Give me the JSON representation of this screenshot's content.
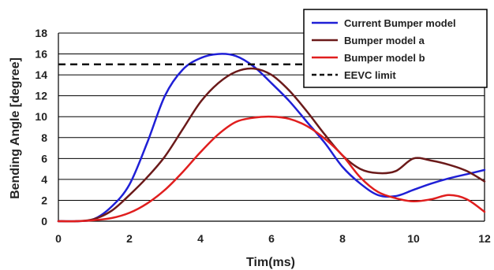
{
  "chart_data": {
    "type": "line",
    "title": "",
    "xlabel": "Tim(ms)",
    "ylabel": "Bending Angle [degree]",
    "xlim": [
      0,
      12
    ],
    "ylim": [
      0,
      18
    ],
    "x_ticks": [
      0,
      2,
      4,
      6,
      8,
      10,
      12
    ],
    "y_ticks": [
      0,
      2,
      4,
      6,
      8,
      10,
      12,
      14,
      16,
      18
    ],
    "grid": "horizontal",
    "legend_position": "top-right",
    "series": [
      {
        "name": "Current Bumper model",
        "color": "#1f1fd6",
        "style": "solid",
        "x": [
          0,
          0.5,
          1.0,
          1.5,
          2.0,
          2.5,
          3.0,
          3.5,
          4.0,
          4.5,
          5.0,
          5.5,
          6.0,
          6.5,
          7.0,
          7.5,
          8.0,
          8.5,
          9.0,
          9.5,
          10.0,
          10.5,
          11.0,
          11.5,
          12.0
        ],
        "values": [
          0,
          0,
          0.2,
          1.4,
          3.5,
          7.5,
          12.0,
          14.5,
          15.6,
          16.0,
          15.8,
          14.8,
          13.2,
          11.5,
          9.5,
          7.5,
          5.2,
          3.6,
          2.5,
          2.4,
          3.0,
          3.6,
          4.1,
          4.5,
          4.9
        ]
      },
      {
        "name": "Bumper model a",
        "color": "#6b1a1a",
        "style": "solid",
        "x": [
          0,
          0.5,
          1.0,
          1.5,
          2.0,
          2.5,
          3.0,
          3.5,
          4.0,
          4.5,
          5.0,
          5.5,
          6.0,
          6.5,
          7.0,
          7.5,
          8.0,
          8.5,
          9.0,
          9.5,
          10.0,
          10.5,
          11.0,
          11.5,
          12.0
        ],
        "values": [
          0,
          0,
          0.2,
          1.0,
          2.5,
          4.2,
          6.2,
          8.8,
          11.4,
          13.2,
          14.3,
          14.6,
          14.0,
          12.5,
          10.5,
          8.3,
          6.3,
          5.0,
          4.6,
          4.8,
          6.0,
          5.8,
          5.4,
          4.8,
          3.8
        ]
      },
      {
        "name": "Bumper model b",
        "color": "#e01e1e",
        "style": "solid",
        "x": [
          0,
          0.5,
          1.0,
          1.5,
          2.0,
          2.5,
          3.0,
          3.5,
          4.0,
          4.5,
          5.0,
          5.5,
          6.0,
          6.5,
          7.0,
          7.5,
          8.0,
          8.5,
          9.0,
          9.5,
          10.0,
          10.5,
          11.0,
          11.5,
          12.0
        ],
        "values": [
          0,
          0,
          0.1,
          0.3,
          0.8,
          1.7,
          3.0,
          4.7,
          6.6,
          8.3,
          9.5,
          9.9,
          10.0,
          9.8,
          9.1,
          7.9,
          6.3,
          4.2,
          2.8,
          2.2,
          1.9,
          2.1,
          2.5,
          2.1,
          0.9
        ]
      },
      {
        "name": "EEVC limit",
        "color": "#111111",
        "style": "dashed",
        "x": [
          0,
          12
        ],
        "values": [
          15,
          15
        ]
      }
    ]
  }
}
